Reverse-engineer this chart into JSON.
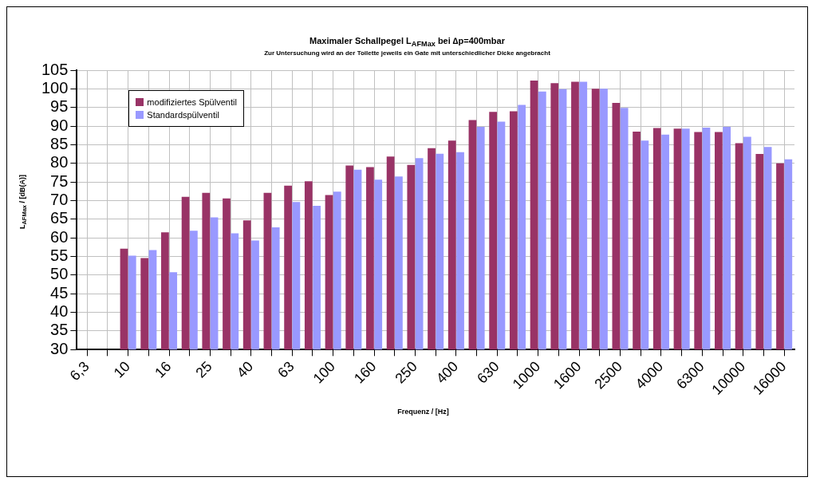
{
  "chart_data": {
    "type": "bar",
    "title": "Maximaler Schallpegel L$_{AFMax}$ bei ∆p=400mbar",
    "subtitle": "Zur Untersuchung wird an der Toilette jeweils ein Gate mit unterschiedlicher Dicke angebracht",
    "xlabel": "Frequenz / [Hz]",
    "ylabel": "L$_{AFMax}$ / [dB(A)]",
    "categories": [
      "6,3",
      null,
      "10",
      null,
      "16",
      null,
      "25",
      null,
      "40",
      null,
      "63",
      null,
      "100",
      null,
      "160",
      null,
      "250",
      null,
      "400",
      null,
      "630",
      null,
      "1000",
      null,
      "1600",
      null,
      "2500",
      null,
      "4000",
      null,
      "6300",
      null,
      "10000",
      null,
      "16000"
    ],
    "series": [
      {
        "name": "modifiziertes Spülventil",
        "color": "#993366",
        "values": [
          null,
          null,
          57.1,
          54.6,
          61.5,
          71.0,
          72.1,
          70.6,
          64.7,
          72.1,
          74.0,
          75.2,
          71.5,
          79.4,
          79.0,
          81.8,
          79.6,
          84.1,
          86.1,
          91.6,
          93.8,
          94.0,
          102.2,
          101.5,
          101.9,
          100.0,
          96.2,
          88.5,
          89.5,
          89.3,
          88.4,
          88.4,
          85.4,
          82.5,
          80.0
        ]
      },
      {
        "name": "Standardspülventil",
        "color": "#9999ff",
        "values": [
          null,
          null,
          55.2,
          56.7,
          50.8,
          61.9,
          65.5,
          61.2,
          59.3,
          62.8,
          69.6,
          68.6,
          72.4,
          78.3,
          75.6,
          76.5,
          81.4,
          82.6,
          83.0,
          89.8,
          91.2,
          95.7,
          99.3,
          99.9,
          101.9,
          100.0,
          94.9,
          86.1,
          87.7,
          89.3,
          89.6,
          89.8,
          87.1,
          84.4,
          81.1
        ]
      }
    ],
    "ylim": [
      30,
      105
    ],
    "yticks": [
      30,
      35,
      40,
      45,
      50,
      55,
      60,
      65,
      70,
      75,
      80,
      85,
      90,
      95,
      100,
      105
    ],
    "grid": true,
    "legend": "top left"
  }
}
